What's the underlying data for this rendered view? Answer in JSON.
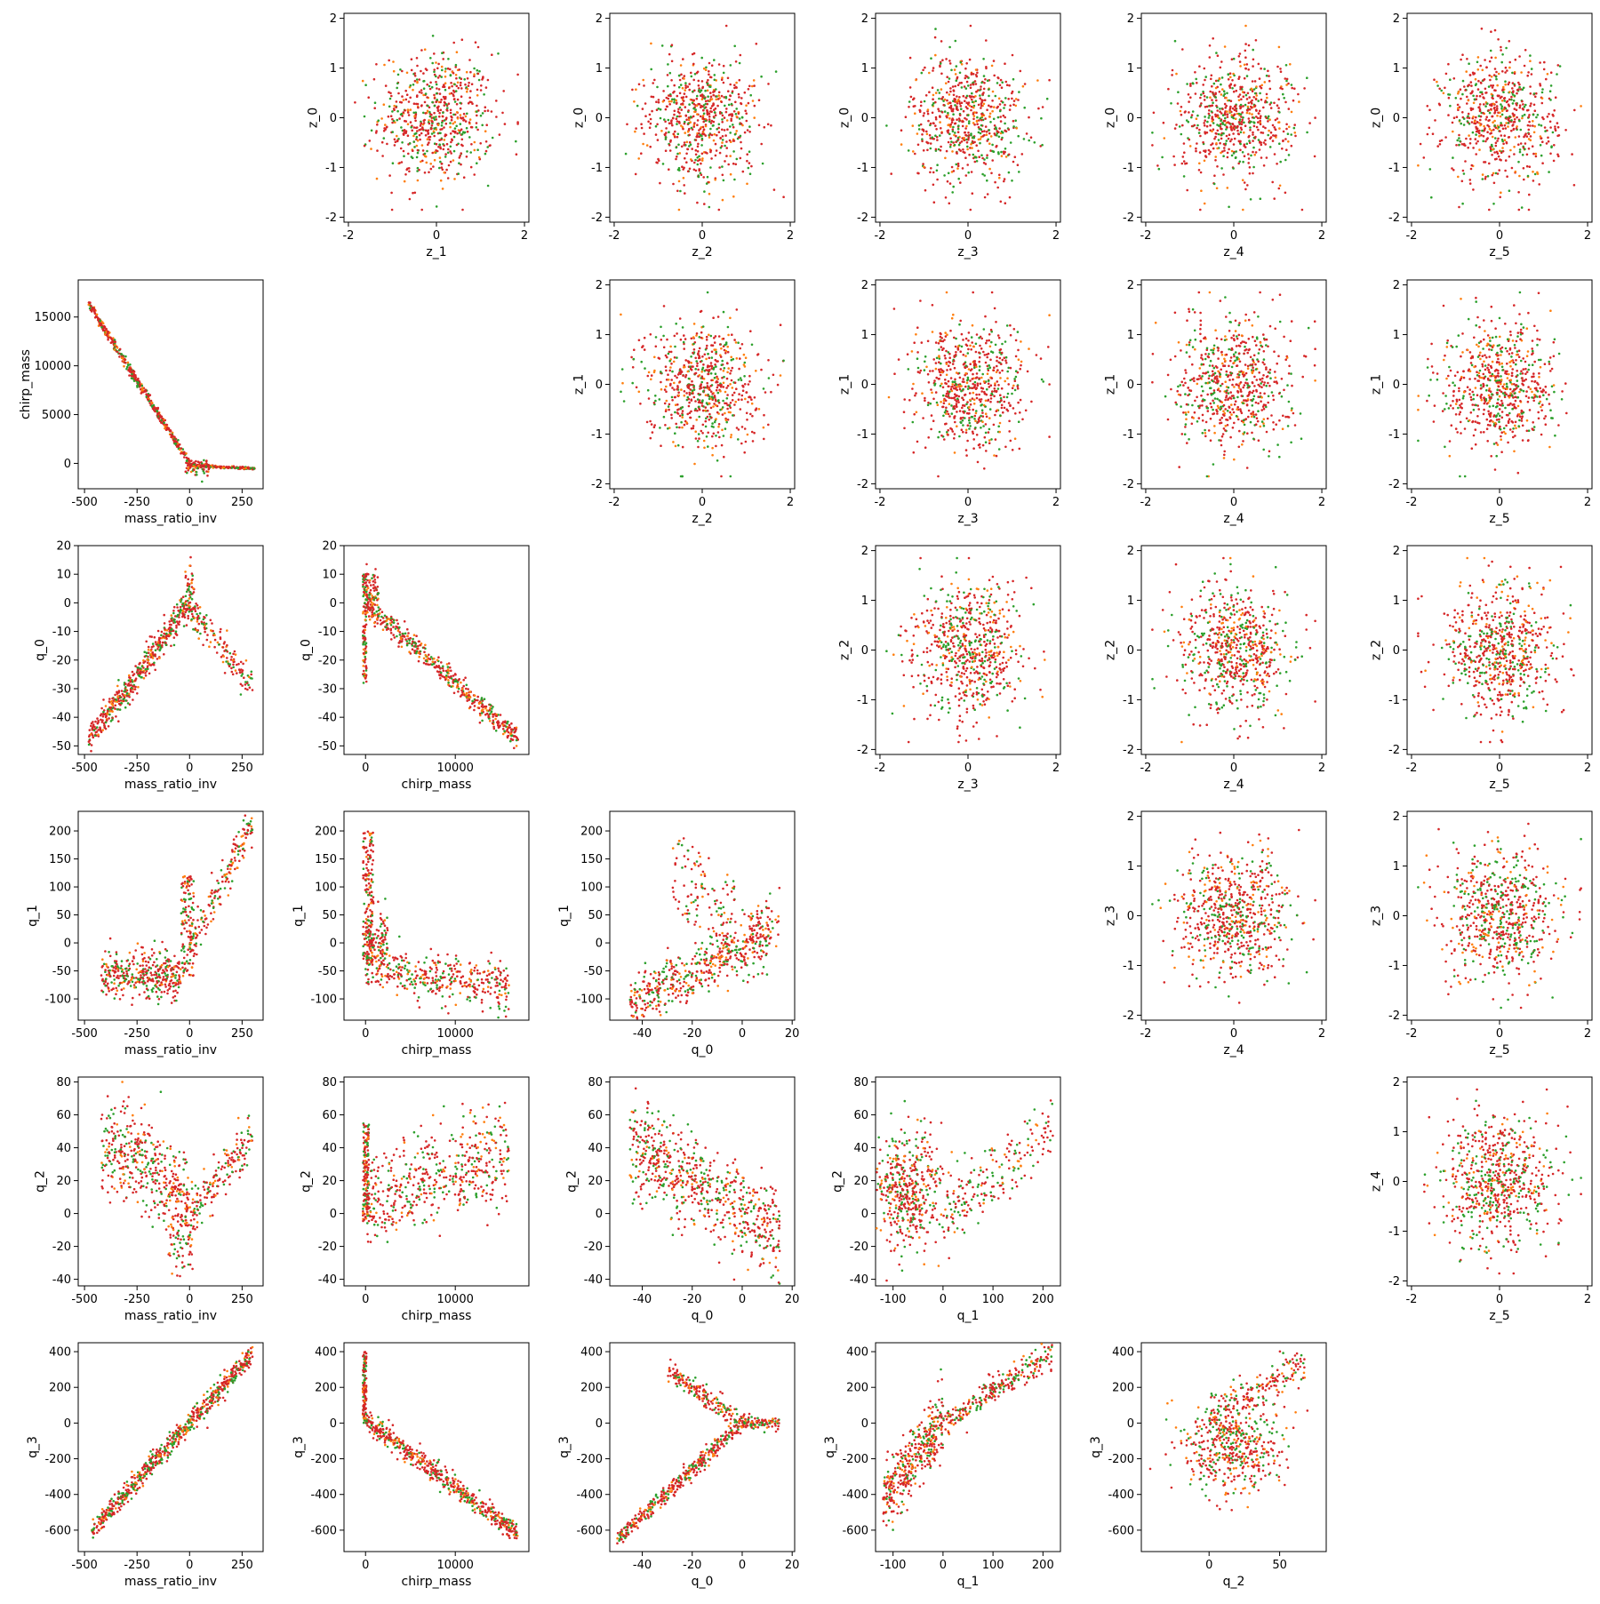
{
  "colors": {
    "red": "#d62728",
    "green": "#2ca02c",
    "orange": "#ff7f0e"
  },
  "chart_data": {
    "type": "scatter",
    "layout": "pair-grid",
    "grid": false,
    "panels": [
      {
        "row": 0,
        "col": 1,
        "xlabel": "z_1",
        "ylabel": "z_0",
        "xlim": [
          -2.1,
          2.1
        ],
        "ylim": [
          -2.1,
          2.1
        ],
        "xticks": [
          -2,
          0,
          2
        ],
        "yticks": [
          -2,
          -1,
          0,
          1,
          2
        ],
        "pattern": "gauss",
        "p": {
          "cx": 0,
          "cy": 0,
          "sx": 0.65,
          "sy": 0.65,
          "rx": 1.85,
          "ry": 1.85
        }
      },
      {
        "row": 0,
        "col": 2,
        "xlabel": "z_2",
        "ylabel": "z_0",
        "xlim": [
          -2.1,
          2.1
        ],
        "ylim": [
          -2.1,
          2.1
        ],
        "xticks": [
          -2,
          0,
          2
        ],
        "yticks": [
          -2,
          -1,
          0,
          1,
          2
        ],
        "pattern": "gauss",
        "p": {
          "cx": 0,
          "cy": 0,
          "sx": 0.65,
          "sy": 0.65,
          "rx": 1.85,
          "ry": 1.85
        }
      },
      {
        "row": 0,
        "col": 3,
        "xlabel": "z_3",
        "ylabel": "z_0",
        "xlim": [
          -2.1,
          2.1
        ],
        "ylim": [
          -2.1,
          2.1
        ],
        "xticks": [
          -2,
          0,
          2
        ],
        "yticks": [
          -2,
          -1,
          0,
          1,
          2
        ],
        "pattern": "gauss",
        "p": {
          "cx": 0,
          "cy": 0,
          "sx": 0.65,
          "sy": 0.65,
          "rx": 1.85,
          "ry": 1.85
        }
      },
      {
        "row": 0,
        "col": 4,
        "xlabel": "z_4",
        "ylabel": "z_0",
        "xlim": [
          -2.1,
          2.1
        ],
        "ylim": [
          -2.1,
          2.1
        ],
        "xticks": [
          -2,
          0,
          2
        ],
        "yticks": [
          -2,
          -1,
          0,
          1,
          2
        ],
        "pattern": "gauss",
        "p": {
          "cx": 0,
          "cy": 0,
          "sx": 0.65,
          "sy": 0.65,
          "rx": 1.85,
          "ry": 1.85
        }
      },
      {
        "row": 0,
        "col": 5,
        "xlabel": "z_5",
        "ylabel": "z_0",
        "xlim": [
          -2.1,
          2.1
        ],
        "ylim": [
          -2.1,
          2.1
        ],
        "xticks": [
          -2,
          0,
          2
        ],
        "yticks": [
          -2,
          -1,
          0,
          1,
          2
        ],
        "pattern": "gauss",
        "p": {
          "cx": 0,
          "cy": 0,
          "sx": 0.65,
          "sy": 0.65,
          "rx": 1.85,
          "ry": 1.85
        }
      },
      {
        "row": 1,
        "col": 0,
        "xlabel": "mass_ratio_inv",
        "ylabel": "chirp_mass",
        "xlim": [
          -530,
          350
        ],
        "ylim": [
          -2600,
          18800
        ],
        "xticks": [
          -500,
          -250,
          0,
          250
        ],
        "yticks": [
          0,
          5000,
          10000,
          15000
        ],
        "pattern": "chirp_vs_mri"
      },
      {
        "row": 1,
        "col": 2,
        "xlabel": "z_2",
        "ylabel": "z_1",
        "xlim": [
          -2.1,
          2.1
        ],
        "ylim": [
          -2.1,
          2.1
        ],
        "xticks": [
          -2,
          0,
          2
        ],
        "yticks": [
          -2,
          -1,
          0,
          1,
          2
        ],
        "pattern": "gauss",
        "p": {
          "cx": 0,
          "cy": 0,
          "sx": 0.65,
          "sy": 0.65,
          "rx": 1.85,
          "ry": 1.85
        }
      },
      {
        "row": 1,
        "col": 3,
        "xlabel": "z_3",
        "ylabel": "z_1",
        "xlim": [
          -2.1,
          2.1
        ],
        "ylim": [
          -2.1,
          2.1
        ],
        "xticks": [
          -2,
          0,
          2
        ],
        "yticks": [
          -2,
          -1,
          0,
          1,
          2
        ],
        "pattern": "gauss",
        "p": {
          "cx": 0,
          "cy": 0,
          "sx": 0.65,
          "sy": 0.65,
          "rx": 1.85,
          "ry": 1.85
        }
      },
      {
        "row": 1,
        "col": 4,
        "xlabel": "z_4",
        "ylabel": "z_1",
        "xlim": [
          -2.1,
          2.1
        ],
        "ylim": [
          -2.1,
          2.1
        ],
        "xticks": [
          -2,
          0,
          2
        ],
        "yticks": [
          -2,
          -1,
          0,
          1,
          2
        ],
        "pattern": "gauss",
        "p": {
          "cx": 0,
          "cy": 0,
          "sx": 0.65,
          "sy": 0.65,
          "rx": 1.85,
          "ry": 1.85
        }
      },
      {
        "row": 1,
        "col": 5,
        "xlabel": "z_5",
        "ylabel": "z_1",
        "xlim": [
          -2.1,
          2.1
        ],
        "ylim": [
          -2.1,
          2.1
        ],
        "xticks": [
          -2,
          0,
          2
        ],
        "yticks": [
          -2,
          -1,
          0,
          1,
          2
        ],
        "pattern": "gauss",
        "p": {
          "cx": 0,
          "cy": 0,
          "sx": 0.65,
          "sy": 0.65,
          "rx": 1.85,
          "ry": 1.85
        }
      },
      {
        "row": 2,
        "col": 0,
        "xlabel": "mass_ratio_inv",
        "ylabel": "q_0",
        "xlim": [
          -530,
          350
        ],
        "ylim": [
          -53,
          20
        ],
        "xticks": [
          -500,
          -250,
          0,
          250
        ],
        "yticks": [
          -50,
          -40,
          -30,
          -20,
          -10,
          0,
          10,
          20
        ],
        "pattern": "q0_vs_mri"
      },
      {
        "row": 2,
        "col": 1,
        "xlabel": "chirp_mass",
        "ylabel": "q_0",
        "xlim": [
          -2400,
          18200
        ],
        "ylim": [
          -53,
          20
        ],
        "xticks": [
          0,
          10000
        ],
        "yticks": [
          -50,
          -40,
          -30,
          -20,
          -10,
          0,
          10,
          20
        ],
        "pattern": "q0_vs_chirp"
      },
      {
        "row": 2,
        "col": 3,
        "xlabel": "z_3",
        "ylabel": "z_2",
        "xlim": [
          -2.1,
          2.1
        ],
        "ylim": [
          -2.1,
          2.1
        ],
        "xticks": [
          -2,
          0,
          2
        ],
        "yticks": [
          -2,
          -1,
          0,
          1,
          2
        ],
        "pattern": "gauss",
        "p": {
          "cx": 0,
          "cy": 0,
          "sx": 0.65,
          "sy": 0.65,
          "rx": 1.85,
          "ry": 1.85
        }
      },
      {
        "row": 2,
        "col": 4,
        "xlabel": "z_4",
        "ylabel": "z_2",
        "xlim": [
          -2.1,
          2.1
        ],
        "ylim": [
          -2.1,
          2.1
        ],
        "xticks": [
          -2,
          0,
          2
        ],
        "yticks": [
          -2,
          -1,
          0,
          1,
          2
        ],
        "pattern": "gauss",
        "p": {
          "cx": 0,
          "cy": 0,
          "sx": 0.65,
          "sy": 0.65,
          "rx": 1.85,
          "ry": 1.85
        }
      },
      {
        "row": 2,
        "col": 5,
        "xlabel": "z_5",
        "ylabel": "z_2",
        "xlim": [
          -2.1,
          2.1
        ],
        "ylim": [
          -2.1,
          2.1
        ],
        "xticks": [
          -2,
          0,
          2
        ],
        "yticks": [
          -2,
          -1,
          0,
          1,
          2
        ],
        "pattern": "gauss",
        "p": {
          "cx": 0,
          "cy": 0,
          "sx": 0.65,
          "sy": 0.65,
          "rx": 1.85,
          "ry": 1.85
        }
      },
      {
        "row": 3,
        "col": 0,
        "xlabel": "mass_ratio_inv",
        "ylabel": "q_1",
        "xlim": [
          -530,
          350
        ],
        "ylim": [
          -138,
          235
        ],
        "xticks": [
          -500,
          -250,
          0,
          250
        ],
        "yticks": [
          -100,
          -50,
          0,
          50,
          100,
          150,
          200
        ],
        "pattern": "q1_vs_mri"
      },
      {
        "row": 3,
        "col": 1,
        "xlabel": "chirp_mass",
        "ylabel": "q_1",
        "xlim": [
          -2400,
          18200
        ],
        "ylim": [
          -138,
          235
        ],
        "xticks": [
          0,
          10000
        ],
        "yticks": [
          -100,
          -50,
          0,
          50,
          100,
          150,
          200
        ],
        "pattern": "q1_vs_chirp"
      },
      {
        "row": 3,
        "col": 2,
        "xlabel": "q_0",
        "ylabel": "q_1",
        "xlim": [
          -53,
          21
        ],
        "ylim": [
          -138,
          235
        ],
        "xticks": [
          -40,
          -20,
          0,
          20
        ],
        "yticks": [
          -100,
          -50,
          0,
          50,
          100,
          150,
          200
        ],
        "pattern": "q1_vs_q0"
      },
      {
        "row": 3,
        "col": 4,
        "xlabel": "z_4",
        "ylabel": "z_3",
        "xlim": [
          -2.1,
          2.1
        ],
        "ylim": [
          -2.1,
          2.1
        ],
        "xticks": [
          -2,
          0,
          2
        ],
        "yticks": [
          -2,
          -1,
          0,
          1,
          2
        ],
        "pattern": "gauss",
        "p": {
          "cx": 0,
          "cy": 0,
          "sx": 0.65,
          "sy": 0.65,
          "rx": 1.85,
          "ry": 1.85
        }
      },
      {
        "row": 3,
        "col": 5,
        "xlabel": "z_5",
        "ylabel": "z_3",
        "xlim": [
          -2.1,
          2.1
        ],
        "ylim": [
          -2.1,
          2.1
        ],
        "xticks": [
          -2,
          0,
          2
        ],
        "yticks": [
          -2,
          -1,
          0,
          1,
          2
        ],
        "pattern": "gauss",
        "p": {
          "cx": 0,
          "cy": 0,
          "sx": 0.65,
          "sy": 0.65,
          "rx": 1.85,
          "ry": 1.85
        }
      },
      {
        "row": 4,
        "col": 0,
        "xlabel": "mass_ratio_inv",
        "ylabel": "q_2",
        "xlim": [
          -530,
          350
        ],
        "ylim": [
          -44,
          83
        ],
        "xticks": [
          -500,
          -250,
          0,
          250
        ],
        "yticks": [
          -40,
          -20,
          0,
          20,
          40,
          60,
          80
        ],
        "pattern": "q2_vs_mri"
      },
      {
        "row": 4,
        "col": 1,
        "xlabel": "chirp_mass",
        "ylabel": "q_2",
        "xlim": [
          -2400,
          18200
        ],
        "ylim": [
          -44,
          83
        ],
        "xticks": [
          0,
          10000
        ],
        "yticks": [
          -40,
          -20,
          0,
          20,
          40,
          60,
          80
        ],
        "pattern": "q2_vs_chirp"
      },
      {
        "row": 4,
        "col": 2,
        "xlabel": "q_0",
        "ylabel": "q_2",
        "xlim": [
          -53,
          21
        ],
        "ylim": [
          -44,
          83
        ],
        "xticks": [
          -40,
          -20,
          0,
          20
        ],
        "yticks": [
          -40,
          -20,
          0,
          20,
          40,
          60,
          80
        ],
        "pattern": "q2_vs_q0"
      },
      {
        "row": 4,
        "col": 3,
        "xlabel": "q_1",
        "ylabel": "q_2",
        "xlim": [
          -135,
          235
        ],
        "ylim": [
          -44,
          83
        ],
        "xticks": [
          -100,
          0,
          100,
          200
        ],
        "yticks": [
          -40,
          -20,
          0,
          20,
          40,
          60,
          80
        ],
        "pattern": "q2_vs_q1"
      },
      {
        "row": 4,
        "col": 5,
        "xlabel": "z_5",
        "ylabel": "z_4",
        "xlim": [
          -2.1,
          2.1
        ],
        "ylim": [
          -2.1,
          2.1
        ],
        "xticks": [
          -2,
          0,
          2
        ],
        "yticks": [
          -2,
          -1,
          0,
          1,
          2
        ],
        "pattern": "gauss",
        "p": {
          "cx": 0,
          "cy": 0,
          "sx": 0.65,
          "sy": 0.65,
          "rx": 1.85,
          "ry": 1.85
        }
      },
      {
        "row": 5,
        "col": 0,
        "xlabel": "mass_ratio_inv",
        "ylabel": "q_3",
        "xlim": [
          -530,
          350
        ],
        "ylim": [
          -720,
          450
        ],
        "xticks": [
          -500,
          -250,
          0,
          250
        ],
        "yticks": [
          -600,
          -400,
          -200,
          0,
          200,
          400
        ],
        "pattern": "q3_vs_mri"
      },
      {
        "row": 5,
        "col": 1,
        "xlabel": "chirp_mass",
        "ylabel": "q_3",
        "xlim": [
          -2400,
          18200
        ],
        "ylim": [
          -720,
          450
        ],
        "xticks": [
          0,
          10000
        ],
        "yticks": [
          -600,
          -400,
          -200,
          0,
          200,
          400
        ],
        "pattern": "q3_vs_chirp"
      },
      {
        "row": 5,
        "col": 2,
        "xlabel": "q_0",
        "ylabel": "q_3",
        "xlim": [
          -53,
          21
        ],
        "ylim": [
          -720,
          450
        ],
        "xticks": [
          -40,
          -20,
          0,
          20
        ],
        "yticks": [
          -600,
          -400,
          -200,
          0,
          200,
          400
        ],
        "pattern": "q3_vs_q0"
      },
      {
        "row": 5,
        "col": 3,
        "xlabel": "q_1",
        "ylabel": "q_3",
        "xlim": [
          -135,
          235
        ],
        "ylim": [
          -720,
          450
        ],
        "xticks": [
          -100,
          0,
          100,
          200
        ],
        "yticks": [
          -600,
          -400,
          -200,
          0,
          200,
          400
        ],
        "pattern": "q3_vs_q1"
      },
      {
        "row": 5,
        "col": 4,
        "xlabel": "q_2",
        "ylabel": "q_3",
        "xlim": [
          -48,
          83
        ],
        "ylim": [
          -720,
          450
        ],
        "xticks": [
          0,
          50
        ],
        "yticks": [
          -600,
          -400,
          -200,
          0,
          200,
          400
        ],
        "pattern": "q3_vs_q2"
      }
    ]
  }
}
